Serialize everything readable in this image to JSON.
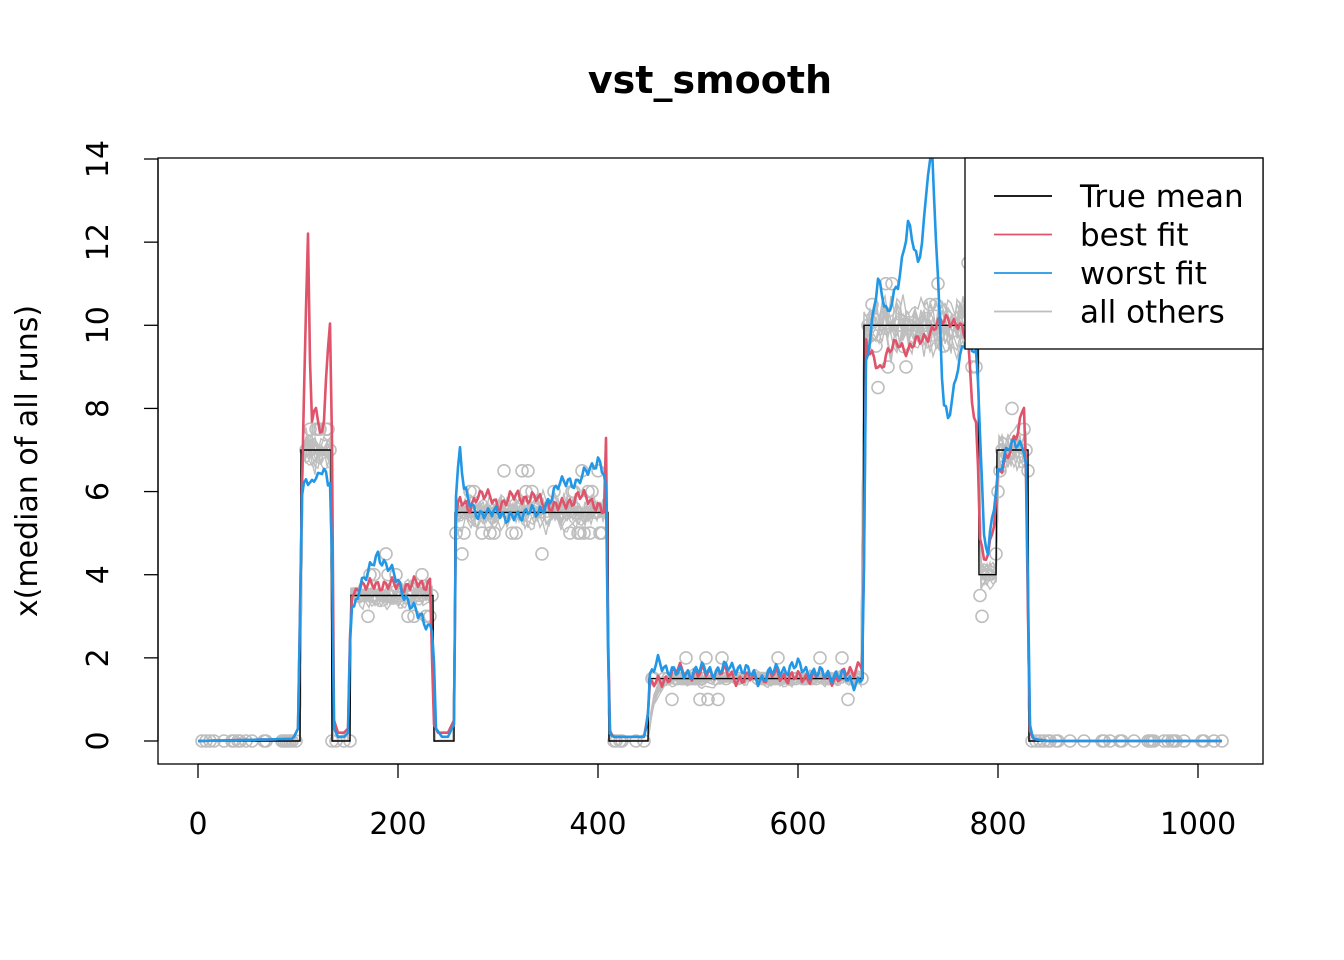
{
  "chart_data": {
    "type": "line",
    "title": "vst_smooth",
    "xlabel": "",
    "ylabel": "x(median of all runs)",
    "xlim": [
      -20,
      1033
    ],
    "ylim": [
      -0.55,
      14
    ],
    "x_ticks": [
      0,
      200,
      400,
      600,
      800,
      1000
    ],
    "y_ticks": [
      0,
      2,
      4,
      6,
      8,
      10,
      12,
      14
    ],
    "x_tick_labels": [
      "0",
      "200",
      "400",
      "600",
      "800",
      "1000"
    ],
    "y_tick_labels": [
      "0",
      "2",
      "4",
      "6",
      "8",
      "10",
      "12",
      "14"
    ],
    "legend": {
      "position": "top-right",
      "entries": [
        {
          "label": "True mean",
          "color": "#000000"
        },
        {
          "label": "best fit",
          "color": "#DF536B"
        },
        {
          "label": "worst fit",
          "color": "#2297E6"
        },
        {
          "label": "all others",
          "color": "#BEBEBE"
        }
      ]
    },
    "series": [
      {
        "name": "True mean",
        "color": "#000000",
        "step": true,
        "x": [
          0,
          102,
          103,
          133,
          134,
          152,
          153,
          235,
          236,
          256,
          257,
          410,
          411,
          450,
          451,
          665,
          666,
          780,
          781,
          798,
          799,
          830,
          831,
          1024
        ],
        "y": [
          0,
          0,
          7,
          7,
          0,
          0,
          3.5,
          3.5,
          0,
          0,
          5.5,
          5.5,
          0,
          0,
          1.5,
          1.5,
          10,
          10,
          4,
          4,
          7,
          7,
          0,
          0
        ]
      },
      {
        "name": "best fit",
        "color": "#DF536B",
        "x": [
          0,
          95,
          100,
          104,
          108,
          110,
          113,
          117,
          121,
          126,
          130,
          133,
          136,
          140,
          146,
          150,
          153,
          156,
          160,
          170,
          185,
          200,
          215,
          225,
          232,
          236,
          240,
          250,
          256,
          258,
          262,
          270,
          280,
          300,
          320,
          340,
          360,
          380,
          400,
          406,
          408,
          411,
          415,
          430,
          446,
          449,
          452,
          460,
          480,
          500,
          520,
          540,
          560,
          580,
          600,
          620,
          640,
          655,
          662,
          665,
          668,
          672,
          676,
          682,
          690,
          700,
          710,
          720,
          730,
          740,
          750,
          760,
          770,
          775,
          779,
          782,
          786,
          790,
          795,
          800,
          810,
          820,
          826,
          829,
          831,
          835,
          850,
          900,
          950,
          1024
        ],
        "y": [
          0,
          0.05,
          0.3,
          6,
          10.5,
          12.35,
          7.5,
          8.3,
          7.3,
          7.6,
          9.5,
          10.5,
          0.5,
          0.2,
          0.2,
          0.3,
          3.6,
          3.5,
          3.8,
          3.7,
          3.8,
          3.7,
          3.8,
          3.7,
          3.9,
          0.4,
          0.2,
          0.2,
          0.5,
          5.5,
          5.8,
          5.5,
          6.0,
          5.7,
          5.9,
          5.8,
          5.6,
          5.9,
          5.7,
          5.5,
          7.1,
          0.3,
          0.1,
          0.1,
          0.1,
          0.5,
          1.3,
          1.4,
          1.7,
          1.6,
          1.7,
          1.5,
          1.5,
          1.6,
          1.5,
          1.6,
          1.5,
          1.7,
          1.9,
          1.8,
          9.5,
          9.3,
          9.2,
          9.0,
          9.3,
          9.6,
          9.4,
          9.6,
          9.8,
          10.0,
          10.2,
          10.0,
          9.6,
          8.0,
          7.5,
          5.0,
          4.2,
          4.5,
          5.0,
          6.5,
          6.8,
          7.5,
          8.2,
          5.5,
          0.3,
          0.05,
          0.0,
          0.0,
          0.0,
          0.0
        ]
      },
      {
        "name": "worst fit",
        "color": "#2297E6",
        "x": [
          0,
          95,
          100,
          104,
          108,
          112,
          116,
          120,
          125,
          130,
          133,
          136,
          140,
          146,
          150,
          153,
          156,
          162,
          170,
          180,
          190,
          200,
          210,
          220,
          230,
          235,
          238,
          244,
          250,
          256,
          258,
          262,
          266,
          270,
          280,
          290,
          300,
          310,
          320,
          330,
          340,
          350,
          360,
          370,
          380,
          390,
          400,
          406,
          408,
          411,
          415,
          430,
          446,
          449,
          452,
          460,
          480,
          500,
          520,
          540,
          560,
          580,
          600,
          620,
          640,
          655,
          662,
          665,
          668,
          672,
          680,
          690,
          700,
          710,
          720,
          725,
          730,
          734,
          740,
          745,
          750,
          760,
          770,
          775,
          779,
          782,
          786,
          790,
          795,
          800,
          810,
          820,
          826,
          829,
          831,
          835,
          850,
          900,
          950,
          1024
        ],
        "y": [
          0,
          0.05,
          0.3,
          5.8,
          6.4,
          6.2,
          6.4,
          6.3,
          6.5,
          6.2,
          6.4,
          0.3,
          0.1,
          0.1,
          0.2,
          3.4,
          3.2,
          3.8,
          4.0,
          4.5,
          4.2,
          3.8,
          3.4,
          3.0,
          2.8,
          2.8,
          0.3,
          0.1,
          0.1,
          0.4,
          6.0,
          7.0,
          6.0,
          5.8,
          5.5,
          5.4,
          5.6,
          5.3,
          5.4,
          5.6,
          5.4,
          5.8,
          6.1,
          6.3,
          6.2,
          6.5,
          6.8,
          6.4,
          5.9,
          0.2,
          0.1,
          0.1,
          0.1,
          0.4,
          1.5,
          1.9,
          1.6,
          1.7,
          1.7,
          1.8,
          1.5,
          1.7,
          1.8,
          1.6,
          1.6,
          1.4,
          1.5,
          1.6,
          9.0,
          9.6,
          11.2,
          10.2,
          11.0,
          12.5,
          11.4,
          12.2,
          13.8,
          14.2,
          11.0,
          8.2,
          7.8,
          9.0,
          9.8,
          9.5,
          9.3,
          7.5,
          4.8,
          4.5,
          5.5,
          6.5,
          7.0,
          7.2,
          7.1,
          6.5,
          0.5,
          0.05,
          0.0,
          0.0,
          0.0,
          0.0
        ]
      }
    ]
  }
}
